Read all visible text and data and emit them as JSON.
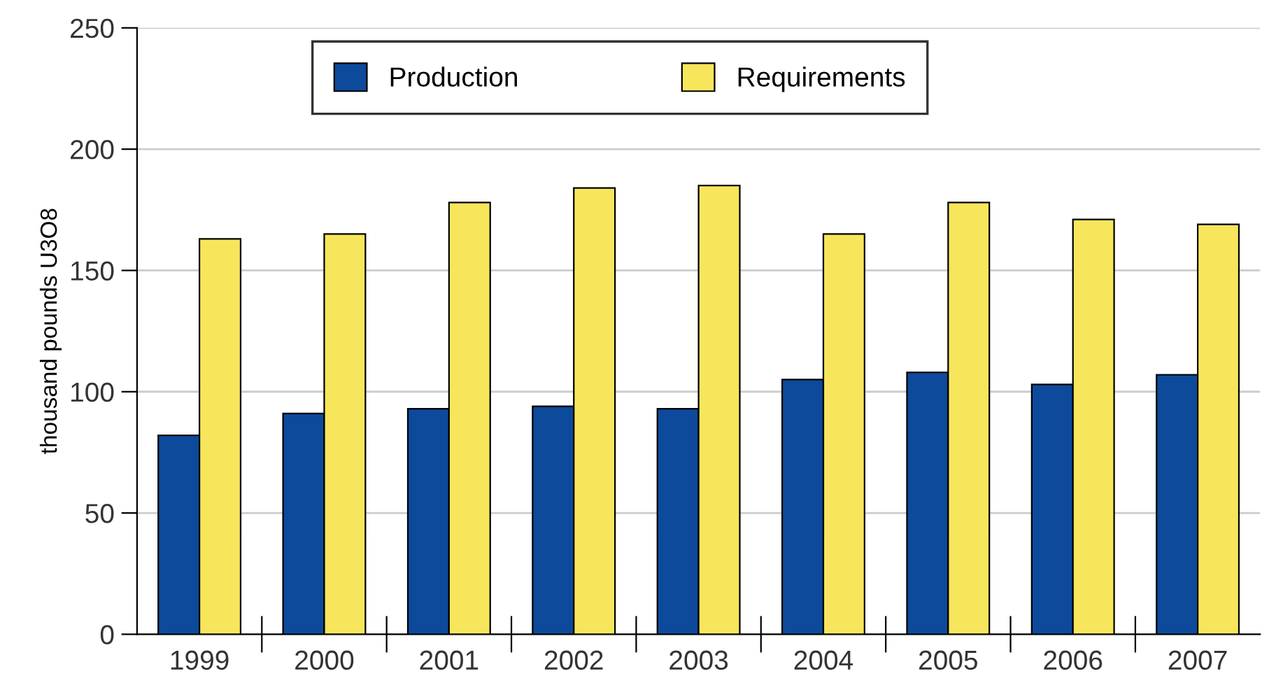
{
  "chart_data": {
    "type": "bar",
    "ylabel": "thousand pounds U3O8",
    "categories": [
      "1999",
      "2000",
      "2001",
      "2002",
      "2003",
      "2004",
      "2005",
      "2006",
      "2007"
    ],
    "series": [
      {
        "name": "Production",
        "color": "#0d4a9b",
        "values": [
          82,
          91,
          93,
          94,
          93,
          105,
          108,
          103,
          107
        ]
      },
      {
        "name": "Requirements",
        "color": "#f7e65c",
        "values": [
          163,
          165,
          178,
          184,
          185,
          165,
          178,
          171,
          169
        ]
      }
    ],
    "ylim": [
      0,
      250
    ],
    "yticks": [
      0,
      50,
      100,
      150,
      200,
      250
    ],
    "grid": "y",
    "legend": "top"
  }
}
